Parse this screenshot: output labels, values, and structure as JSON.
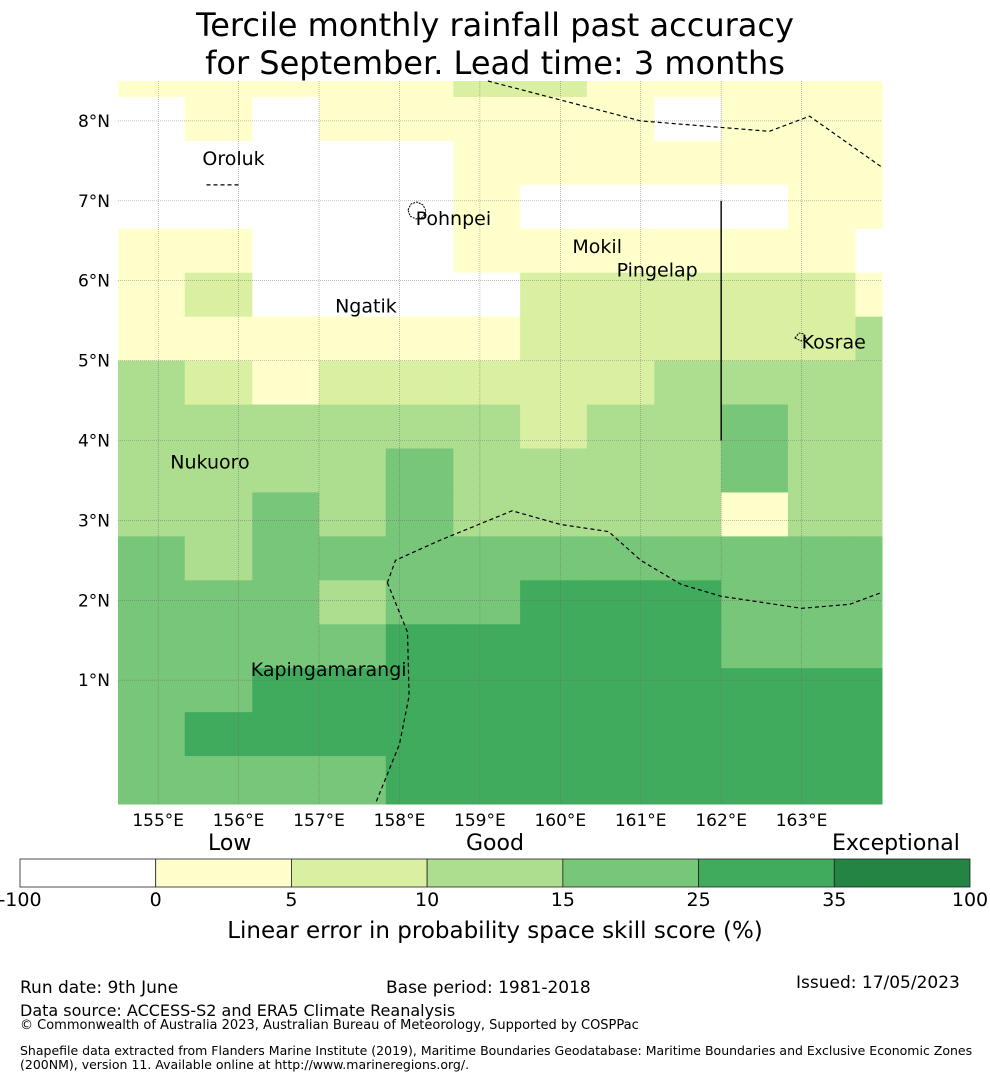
{
  "title": {
    "line1": "Tercile monthly rainfall past accuracy",
    "line2": "for September. Lead time: 3 months"
  },
  "map": {
    "lon_range": [
      154.5,
      164.0
    ],
    "lat_range": [
      -0.55,
      8.5
    ],
    "lat_ticks": [
      {
        "value": 8,
        "label": "8°N"
      },
      {
        "value": 7,
        "label": "7°N"
      },
      {
        "value": 6,
        "label": "6°N"
      },
      {
        "value": 5,
        "label": "5°N"
      },
      {
        "value": 4,
        "label": "4°N"
      },
      {
        "value": 3,
        "label": "3°N"
      },
      {
        "value": 2,
        "label": "2°N"
      },
      {
        "value": 1,
        "label": "1°N"
      }
    ],
    "lon_ticks": [
      {
        "value": 155,
        "label": "155°E"
      },
      {
        "value": 156,
        "label": "156°E"
      },
      {
        "value": 157,
        "label": "157°E"
      },
      {
        "value": 158,
        "label": "158°E"
      },
      {
        "value": 159,
        "label": "159°E"
      },
      {
        "value": 160,
        "label": "160°E"
      },
      {
        "value": 161,
        "label": "161°E"
      },
      {
        "value": 162,
        "label": "162°E"
      },
      {
        "value": 163,
        "label": "163°E"
      }
    ],
    "grid": {
      "lon_edges": [
        154.5,
        155.33,
        156.17,
        157.0,
        157.83,
        158.67,
        159.5,
        160.33,
        161.17,
        162.0,
        162.83,
        163.67,
        164.0
      ],
      "lat_edges": [
        8.5,
        8.3,
        7.75,
        7.2,
        6.65,
        6.1,
        5.55,
        5.0,
        4.45,
        3.9,
        3.35,
        2.8,
        2.25,
        1.7,
        1.15,
        0.6,
        0.05,
        -0.55
      ],
      "cell_classes": [
        [
          1,
          1,
          1,
          1,
          1,
          2,
          2,
          1,
          1,
          1,
          1,
          1
        ],
        [
          0,
          1,
          0,
          1,
          1,
          1,
          1,
          1,
          0,
          1,
          1,
          1
        ],
        [
          0,
          0,
          0,
          0,
          0,
          1,
          1,
          1,
          1,
          1,
          1,
          1
        ],
        [
          0,
          0,
          0,
          0,
          0,
          1,
          0,
          0,
          0,
          0,
          1,
          1
        ],
        [
          1,
          1,
          0,
          0,
          0,
          1,
          1,
          1,
          1,
          1,
          1,
          0
        ],
        [
          1,
          2,
          0,
          0,
          0,
          0,
          2,
          2,
          2,
          2,
          2,
          1
        ],
        [
          1,
          1,
          1,
          1,
          1,
          1,
          2,
          2,
          2,
          2,
          2,
          3
        ],
        [
          3,
          2,
          1,
          2,
          2,
          2,
          2,
          2,
          3,
          3,
          3,
          3
        ],
        [
          3,
          3,
          3,
          3,
          3,
          3,
          2,
          3,
          3,
          4,
          3,
          3
        ],
        [
          3,
          3,
          3,
          3,
          4,
          3,
          3,
          3,
          3,
          4,
          3,
          3
        ],
        [
          3,
          3,
          4,
          3,
          4,
          3,
          3,
          3,
          3,
          1,
          3,
          3
        ],
        [
          4,
          3,
          4,
          4,
          4,
          4,
          4,
          4,
          4,
          4,
          4,
          4
        ],
        [
          4,
          4,
          4,
          3,
          4,
          4,
          5,
          5,
          5,
          4,
          4,
          4
        ],
        [
          4,
          4,
          4,
          4,
          5,
          5,
          5,
          5,
          5,
          4,
          4,
          4
        ],
        [
          4,
          4,
          5,
          5,
          5,
          5,
          5,
          5,
          5,
          5,
          5,
          5
        ],
        [
          4,
          5,
          5,
          5,
          5,
          5,
          5,
          5,
          5,
          5,
          5,
          5
        ],
        [
          4,
          4,
          4,
          4,
          5,
          5,
          5,
          5,
          5,
          5,
          5,
          5
        ]
      ]
    },
    "places": [
      {
        "name": "Oroluk",
        "lon": 155.55,
        "lat": 7.45
      },
      {
        "name": "Pohnpei",
        "lon": 158.2,
        "lat": 6.7
      },
      {
        "name": "Mokil",
        "lon": 160.15,
        "lat": 6.35
      },
      {
        "name": "Pingelap",
        "lon": 160.7,
        "lat": 6.05
      },
      {
        "name": "Ngatik",
        "lon": 157.2,
        "lat": 5.6
      },
      {
        "name": "Kosrae",
        "lon": 163.0,
        "lat": 5.15
      },
      {
        "name": "Nukuoro",
        "lon": 155.15,
        "lat": 3.65
      },
      {
        "name": "Kapingamarangi",
        "lon": 156.15,
        "lat": 1.05
      }
    ],
    "eez_boundaries": [
      [
        [
          159.1,
          8.5
        ],
        [
          161.0,
          8.0
        ],
        [
          162.6,
          7.87
        ],
        [
          163.1,
          8.06
        ],
        [
          164.0,
          7.42
        ]
      ],
      [
        [
          155.6,
          7.2
        ],
        [
          156.0,
          7.2
        ]
      ],
      [
        [
          157.85,
          2.22
        ],
        [
          157.95,
          2.5
        ],
        [
          158.5,
          2.75
        ],
        [
          159.4,
          3.12
        ],
        [
          160.0,
          2.95
        ],
        [
          160.6,
          2.86
        ],
        [
          161.0,
          2.5
        ],
        [
          161.5,
          2.2
        ],
        [
          162.0,
          2.05
        ],
        [
          163.0,
          1.9
        ],
        [
          163.6,
          1.95
        ],
        [
          164.0,
          2.1
        ]
      ],
      [
        [
          157.85,
          2.22
        ],
        [
          158.1,
          1.6
        ],
        [
          158.12,
          0.8
        ],
        [
          158.0,
          0.2
        ],
        [
          157.7,
          -0.55
        ]
      ]
    ],
    "solid_line": [
      [
        162.0,
        7.0
      ],
      [
        162.0,
        4.0
      ]
    ]
  },
  "colorbar": {
    "colors": [
      "#ffffff",
      "#ffffcc",
      "#d9f0a3",
      "#addd8e",
      "#78c679",
      "#41ab5d",
      "#238443"
    ],
    "tick_labels": [
      "-100",
      "0",
      "5",
      "10",
      "15",
      "25",
      "35",
      "100"
    ],
    "categories": [
      "Low",
      "Good",
      "Exceptional"
    ],
    "title": "Linear error in probability space skill score (%)"
  },
  "footer": {
    "run_date": "Run date: 9th June",
    "base_period": "Base period: 1981-2018",
    "issued": "Issued: 17/05/2023",
    "data_source": "Data source: ACCESS-S2 and ERA5 Climate Reanalysis",
    "copyright": "© Commonwealth of Australia 2023, Australian Bureau of Meteorology, Supported by COSPPac",
    "shapefile_line1": "Shapefile data extracted from Flanders Marine Institute (2019), Maritime Boundaries Geodatabase: Maritime Boundaries and Exclusive Economic Zones",
    "shapefile_line2": "(200NM), version 11. Available online at http://www.marineregions.org/."
  }
}
